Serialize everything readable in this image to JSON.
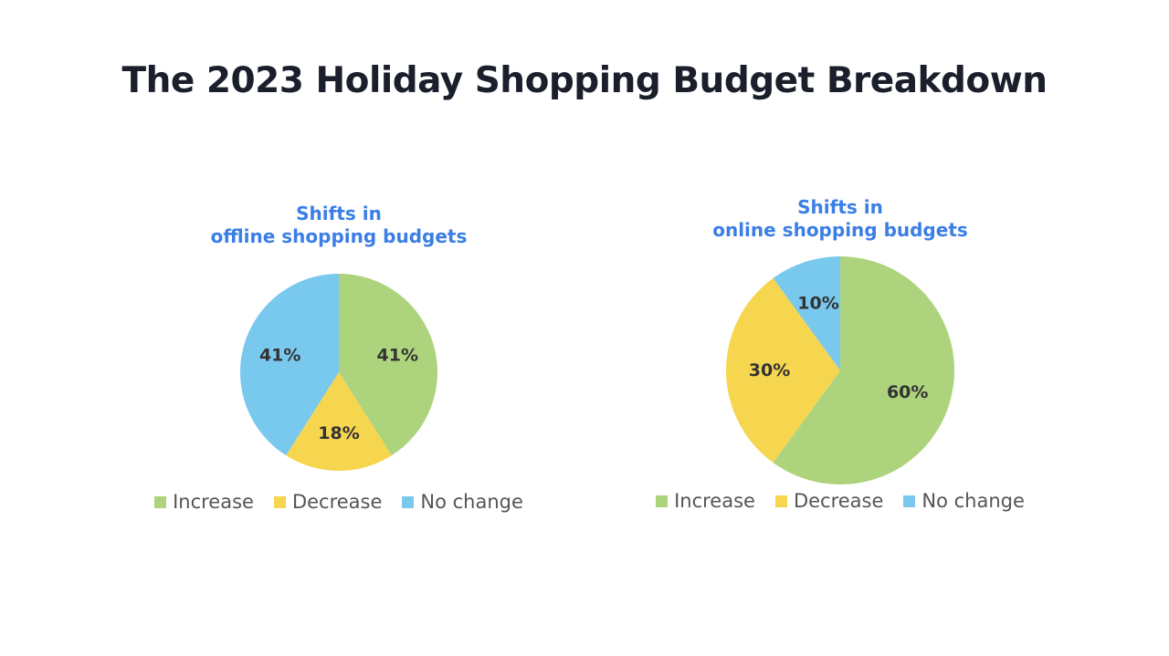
{
  "title": "The 2023 Holiday Shopping Budget Breakdown",
  "colors": {
    "Increase": "#add47d",
    "Decrease": "#f6d54f",
    "No change": "#79c8ee"
  },
  "chart_data": [
    {
      "type": "pie",
      "title_lines": [
        "Shifts in",
        "offline shopping budgets"
      ],
      "labels": [
        "Increase",
        "Decrease",
        "No change"
      ],
      "values": [
        41,
        18,
        41
      ],
      "value_labels": [
        "41%",
        "18%",
        "41%"
      ],
      "legend_position": "bottom"
    },
    {
      "type": "pie",
      "title_lines": [
        "Shifts in",
        "online shopping budgets"
      ],
      "labels": [
        "Increase",
        "Decrease",
        "No change"
      ],
      "values": [
        60,
        30,
        10
      ],
      "value_labels": [
        "60%",
        "30%",
        "10%"
      ],
      "legend_position": "bottom"
    }
  ]
}
